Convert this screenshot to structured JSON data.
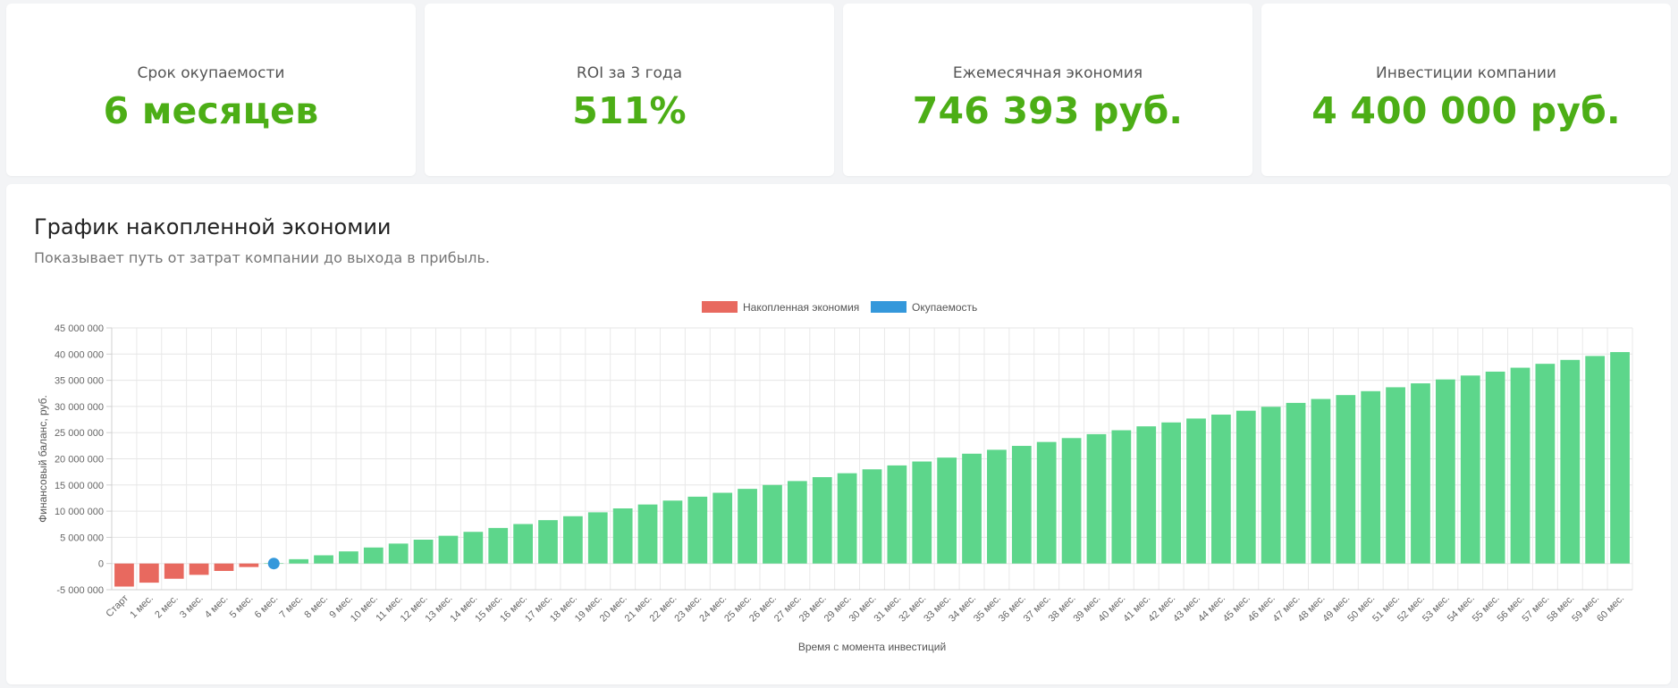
{
  "kpis": [
    {
      "label": "Срок окупаемости",
      "value": "6 месяцев"
    },
    {
      "label": "ROI за 3 года",
      "value": "511%"
    },
    {
      "label": "Ежемесячная экономия",
      "value": "746 393 руб."
    },
    {
      "label": "Инвестиции компании",
      "value": "4 400 000 руб."
    }
  ],
  "chart_section": {
    "title": "График накопленной экономии",
    "subtitle": "Показывает путь от затрат компании до выхода в прибыль."
  },
  "colors": {
    "accent_green": "#4cae16",
    "bar_positive": "#5dd68b",
    "bar_negative": "#e8695f",
    "payback_marker": "#3498db"
  },
  "chart_data": {
    "type": "bar",
    "xlabel": "Время с момента инвестиций",
    "ylabel": "Финансовый баланс, руб.",
    "ylim": [
      -5000000,
      45000000
    ],
    "y_ticks": [
      -5000000,
      0,
      5000000,
      10000000,
      15000000,
      20000000,
      25000000,
      30000000,
      35000000,
      40000000,
      45000000
    ],
    "y_tick_labels": [
      "-5 000 000",
      "0",
      "5 000 000",
      "10 000 000",
      "15 000 000",
      "20 000 000",
      "25 000 000",
      "30 000 000",
      "35 000 000",
      "40 000 000",
      "45 000 000"
    ],
    "grid": true,
    "legend_position": "top-center",
    "legend": [
      {
        "name": "Накопленная экономия",
        "color": "#e8695f"
      },
      {
        "name": "Окупаемость",
        "color": "#3498db"
      }
    ],
    "categories": [
      "Старт",
      "1 мес.",
      "2 мес.",
      "3 мес.",
      "4 мес.",
      "5 мес.",
      "6 мес.",
      "7 мес.",
      "8 мес.",
      "9 мес.",
      "10 мес.",
      "11 мес.",
      "12 мес.",
      "13 мес.",
      "14 мес.",
      "15 мес.",
      "16 мес.",
      "17 мес.",
      "18 мес.",
      "19 мес.",
      "20 мес.",
      "21 мес.",
      "22 мес.",
      "23 мес.",
      "24 мес.",
      "25 мес.",
      "26 мес.",
      "27 мес.",
      "28 мес.",
      "29 мес.",
      "30 мес.",
      "31 мес.",
      "32 мес.",
      "33 мес.",
      "34 мес.",
      "35 мес.",
      "36 мес.",
      "37 мес.",
      "38 мес.",
      "39 мес.",
      "40 мес.",
      "41 мес.",
      "42 мес.",
      "43 мес.",
      "44 мес.",
      "45 мес.",
      "46 мес.",
      "47 мес.",
      "48 мес.",
      "49 мес.",
      "50 мес.",
      "51 мес.",
      "52 мес.",
      "53 мес.",
      "54 мес.",
      "55 мес.",
      "56 мес.",
      "57 мес.",
      "58 мес.",
      "59 мес.",
      "60 мес."
    ],
    "series": [
      {
        "name": "Накопленная экономия",
        "values": [
          -4400000,
          -3653607,
          -2907214,
          -2160821,
          -1414428,
          -668035,
          78358,
          824751,
          1571144,
          2317537,
          3063930,
          3810323,
          4556716,
          5303109,
          6049502,
          6795895,
          7542288,
          8288681,
          9035074,
          9781467,
          10527860,
          11274253,
          12020646,
          12767039,
          13513432,
          14259825,
          15006218,
          15752611,
          16499004,
          17245397,
          17991790,
          18738183,
          19484576,
          20230969,
          20977362,
          21723755,
          22470148,
          23216541,
          23962934,
          24709327,
          25455720,
          26202113,
          26948506,
          27694899,
          28441292,
          29187685,
          29934078,
          30680471,
          31426864,
          32173257,
          32919650,
          33666043,
          34412436,
          35158829,
          35905222,
          36651615,
          37398008,
          38144401,
          38890794,
          39637187,
          40383580
        ]
      },
      {
        "name": "Окупаемость",
        "point": {
          "category": "6 мес.",
          "value": 0
        }
      }
    ]
  }
}
